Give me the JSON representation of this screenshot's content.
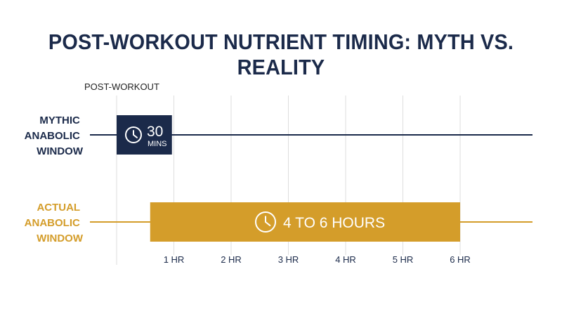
{
  "title": "POST-WORKOUT NUTRIENT TIMING: MYTH VS. REALITY",
  "colors": {
    "navy": "#1b2a4a",
    "gold": "#d49d2a",
    "grid": "#dedede"
  },
  "chart_data": {
    "type": "bar",
    "orientation": "horizontal",
    "start_label": "POST-WORKOUT",
    "x_unit": "hours",
    "xlim": [
      0,
      7
    ],
    "ticks": [
      {
        "value": 1,
        "label": "1 HR"
      },
      {
        "value": 2,
        "label": "2 HR"
      },
      {
        "value": 3,
        "label": "3 HR"
      },
      {
        "value": 4,
        "label": "4 HR"
      },
      {
        "value": 5,
        "label": "5 HR"
      },
      {
        "value": 6,
        "label": "6 HR"
      }
    ],
    "grid": true,
    "rows": [
      {
        "label_lines": [
          "MYTHIC",
          "ANABOLIC",
          "WINDOW"
        ],
        "color": "#1b2a4a",
        "start": 0,
        "end": 0.5,
        "value_text": "30",
        "unit_text": "MINS",
        "icon": "clock-icon"
      },
      {
        "label_lines": [
          "ACTUAL",
          "ANABOLIC",
          "WINDOW"
        ],
        "color": "#d49d2a",
        "start": 0.5,
        "end": 6,
        "value_text": "4 TO 6 HOURS",
        "icon": "clock-icon"
      }
    ]
  }
}
